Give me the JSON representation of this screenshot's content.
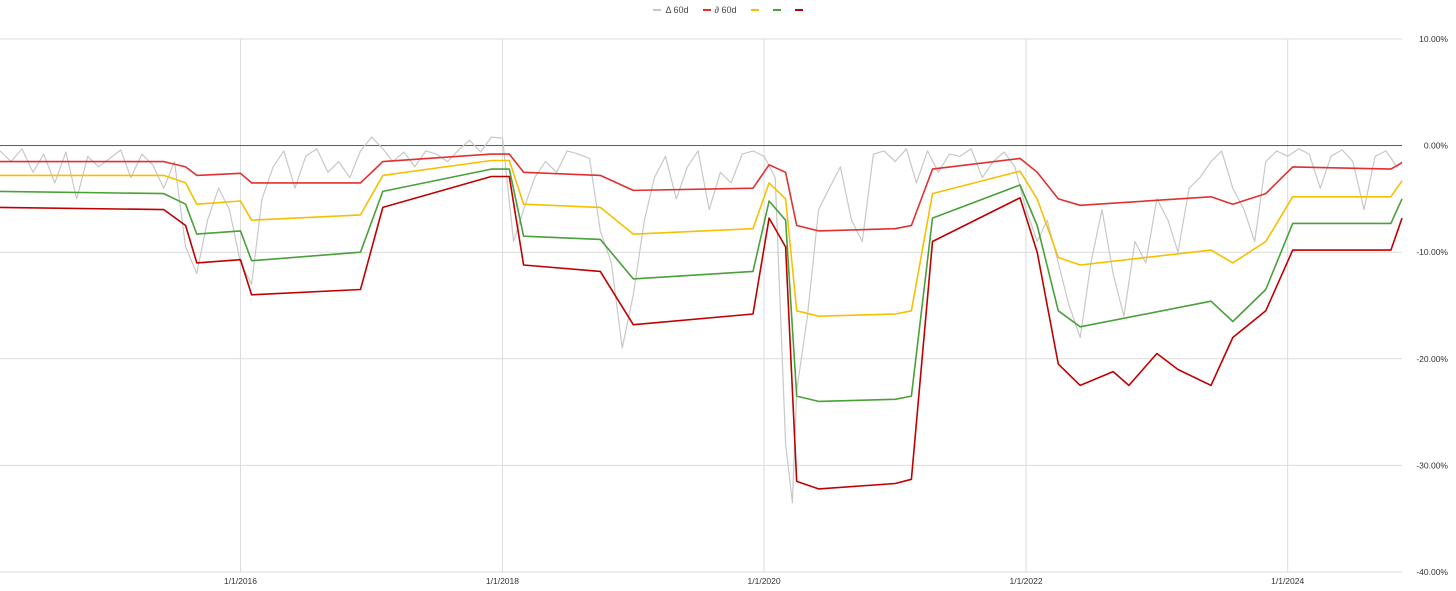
{
  "chart_data": {
    "type": "line",
    "title": "",
    "xlabel": "",
    "ylabel": "",
    "x_ticks": [
      "1/1/2016",
      "1/1/2018",
      "1/1/2020",
      "1/1/2022",
      "1/1/2024"
    ],
    "y_ticks": [
      "10.00%",
      "0.00%",
      "-10.00%",
      "-20.00%",
      "-30.00%",
      "-40.00%"
    ],
    "ylim": [
      -40,
      10
    ],
    "xlim": [
      "2014-03-01",
      "2024-11-15"
    ],
    "grid": true,
    "legend_position": "top-center",
    "zero_line": true,
    "series": [
      {
        "name": "Δ 60d",
        "color": "#c8c8c8",
        "points": [
          [
            "2014-03-01",
            -0.5
          ],
          [
            "2014-04-01",
            -1.5
          ],
          [
            "2014-05-01",
            -0.3
          ],
          [
            "2014-06-01",
            -2.5
          ],
          [
            "2014-07-01",
            -0.8
          ],
          [
            "2014-08-01",
            -3.5
          ],
          [
            "2014-09-01",
            -0.6
          ],
          [
            "2014-10-01",
            -5.0
          ],
          [
            "2014-11-01",
            -1.0
          ],
          [
            "2014-12-01",
            -2.0
          ],
          [
            "2015-01-01",
            -1.2
          ],
          [
            "2015-02-01",
            -0.4
          ],
          [
            "2015-03-01",
            -3.0
          ],
          [
            "2015-04-01",
            -0.8
          ],
          [
            "2015-05-01",
            -1.8
          ],
          [
            "2015-06-01",
            -4.0
          ],
          [
            "2015-07-01",
            -1.5
          ],
          [
            "2015-08-01",
            -9.5
          ],
          [
            "2015-09-01",
            -12.0
          ],
          [
            "2015-10-01",
            -7.0
          ],
          [
            "2015-11-01",
            -4.0
          ],
          [
            "2015-12-01",
            -6.0
          ],
          [
            "2016-01-01",
            -11.0
          ],
          [
            "2016-02-01",
            -13.0
          ],
          [
            "2016-03-01",
            -5.0
          ],
          [
            "2016-04-01",
            -2.0
          ],
          [
            "2016-05-01",
            -0.5
          ],
          [
            "2016-06-01",
            -4.0
          ],
          [
            "2016-07-01",
            -1.0
          ],
          [
            "2016-08-01",
            -0.3
          ],
          [
            "2016-09-01",
            -2.5
          ],
          [
            "2016-10-01",
            -1.5
          ],
          [
            "2016-11-01",
            -3.0
          ],
          [
            "2016-12-01",
            -0.5
          ],
          [
            "2017-01-01",
            0.8
          ],
          [
            "2017-02-01",
            -0.3
          ],
          [
            "2017-03-01",
            -1.5
          ],
          [
            "2017-04-01",
            -0.6
          ],
          [
            "2017-05-01",
            -2.0
          ],
          [
            "2017-06-01",
            -0.5
          ],
          [
            "2017-07-01",
            -0.8
          ],
          [
            "2017-08-01",
            -1.5
          ],
          [
            "2017-09-01",
            -0.4
          ],
          [
            "2017-10-01",
            0.5
          ],
          [
            "2017-11-01",
            -0.6
          ],
          [
            "2017-12-01",
            0.8
          ],
          [
            "2018-01-01",
            0.7
          ],
          [
            "2018-02-01",
            -9.0
          ],
          [
            "2018-03-01",
            -6.0
          ],
          [
            "2018-04-01",
            -3.0
          ],
          [
            "2018-05-01",
            -1.5
          ],
          [
            "2018-06-01",
            -2.5
          ],
          [
            "2018-07-01",
            -0.5
          ],
          [
            "2018-08-01",
            -0.8
          ],
          [
            "2018-09-01",
            -1.2
          ],
          [
            "2018-10-01",
            -8.0
          ],
          [
            "2018-11-01",
            -11.0
          ],
          [
            "2018-12-01",
            -19.0
          ],
          [
            "2019-01-01",
            -14.0
          ],
          [
            "2019-02-01",
            -7.0
          ],
          [
            "2019-03-01",
            -3.0
          ],
          [
            "2019-04-01",
            -1.0
          ],
          [
            "2019-05-01",
            -5.0
          ],
          [
            "2019-06-01",
            -2.0
          ],
          [
            "2019-07-01",
            -0.5
          ],
          [
            "2019-08-01",
            -6.0
          ],
          [
            "2019-09-01",
            -2.5
          ],
          [
            "2019-10-01",
            -3.5
          ],
          [
            "2019-11-01",
            -0.8
          ],
          [
            "2019-12-01",
            -0.5
          ],
          [
            "2020-01-01",
            -1.0
          ],
          [
            "2020-02-01",
            -3.0
          ],
          [
            "2020-03-01",
            -28.0
          ],
          [
            "2020-03-20",
            -33.5
          ],
          [
            "2020-04-01",
            -23.0
          ],
          [
            "2020-05-01",
            -16.0
          ],
          [
            "2020-06-01",
            -6.0
          ],
          [
            "2020-07-01",
            -4.0
          ],
          [
            "2020-08-01",
            -2.0
          ],
          [
            "2020-09-01",
            -7.0
          ],
          [
            "2020-10-01",
            -9.0
          ],
          [
            "2020-11-01",
            -0.8
          ],
          [
            "2020-12-01",
            -0.5
          ],
          [
            "2021-01-01",
            -1.5
          ],
          [
            "2021-02-01",
            -0.3
          ],
          [
            "2021-03-01",
            -3.5
          ],
          [
            "2021-04-01",
            -0.5
          ],
          [
            "2021-05-01",
            -2.5
          ],
          [
            "2021-06-01",
            -0.8
          ],
          [
            "2021-07-01",
            -1.0
          ],
          [
            "2021-08-01",
            -0.3
          ],
          [
            "2021-09-01",
            -3.0
          ],
          [
            "2021-10-01",
            -1.5
          ],
          [
            "2021-11-01",
            -0.6
          ],
          [
            "2021-12-01",
            -2.0
          ],
          [
            "2022-01-01",
            -6.0
          ],
          [
            "2022-02-01",
            -9.0
          ],
          [
            "2022-03-01",
            -7.0
          ],
          [
            "2022-04-01",
            -11.0
          ],
          [
            "2022-05-01",
            -15.0
          ],
          [
            "2022-06-01",
            -18.0
          ],
          [
            "2022-07-01",
            -11.0
          ],
          [
            "2022-08-01",
            -6.0
          ],
          [
            "2022-09-01",
            -12.0
          ],
          [
            "2022-10-01",
            -16.0
          ],
          [
            "2022-11-01",
            -9.0
          ],
          [
            "2022-12-01",
            -11.0
          ],
          [
            "2023-01-01",
            -5.0
          ],
          [
            "2023-02-01",
            -7.0
          ],
          [
            "2023-03-01",
            -10.0
          ],
          [
            "2023-04-01",
            -4.0
          ],
          [
            "2023-05-01",
            -3.0
          ],
          [
            "2023-06-01",
            -1.5
          ],
          [
            "2023-07-01",
            -0.5
          ],
          [
            "2023-08-01",
            -4.0
          ],
          [
            "2023-09-01",
            -6.0
          ],
          [
            "2023-10-01",
            -9.0
          ],
          [
            "2023-11-01",
            -1.5
          ],
          [
            "2023-12-01",
            -0.5
          ],
          [
            "2024-01-01",
            -1.0
          ],
          [
            "2024-02-01",
            -0.3
          ],
          [
            "2024-03-01",
            -0.8
          ],
          [
            "2024-04-01",
            -4.0
          ],
          [
            "2024-05-01",
            -1.0
          ],
          [
            "2024-06-01",
            -0.4
          ],
          [
            "2024-07-01",
            -1.5
          ],
          [
            "2024-08-01",
            -6.0
          ],
          [
            "2024-09-01",
            -1.0
          ],
          [
            "2024-10-01",
            -0.5
          ],
          [
            "2024-11-01",
            -2.0
          ],
          [
            "2024-11-15",
            -1.5
          ]
        ]
      },
      {
        "name": "∂ 60d",
        "color": "#e03030",
        "points": [
          [
            "2014-03-01",
            -1.5
          ],
          [
            "2015-06-01",
            -1.5
          ],
          [
            "2015-08-01",
            -2.0
          ],
          [
            "2015-09-01",
            -2.8
          ],
          [
            "2016-01-01",
            -2.6
          ],
          [
            "2016-02-01",
            -3.5
          ],
          [
            "2016-12-01",
            -3.5
          ],
          [
            "2017-02-01",
            -1.5
          ],
          [
            "2017-12-01",
            -0.8
          ],
          [
            "2018-01-20",
            -0.8
          ],
          [
            "2018-03-01",
            -2.5
          ],
          [
            "2018-10-01",
            -2.8
          ],
          [
            "2019-01-01",
            -4.2
          ],
          [
            "2019-12-01",
            -4.0
          ],
          [
            "2020-01-15",
            -1.8
          ],
          [
            "2020-03-01",
            -2.5
          ],
          [
            "2020-04-01",
            -7.5
          ],
          [
            "2020-06-01",
            -8.0
          ],
          [
            "2021-01-01",
            -7.8
          ],
          [
            "2021-02-15",
            -7.5
          ],
          [
            "2021-04-15",
            -2.2
          ],
          [
            "2021-12-15",
            -1.2
          ],
          [
            "2022-02-01",
            -2.5
          ],
          [
            "2022-04-01",
            -5.0
          ],
          [
            "2022-06-01",
            -5.6
          ],
          [
            "2023-06-01",
            -4.8
          ],
          [
            "2023-08-01",
            -5.5
          ],
          [
            "2023-11-01",
            -4.5
          ],
          [
            "2024-01-15",
            -2.0
          ],
          [
            "2024-10-15",
            -2.2
          ],
          [
            "2024-11-15",
            -1.6
          ]
        ]
      },
      {
        "name": "",
        "color": "#f5c000",
        "points": [
          [
            "2014-03-01",
            -2.8
          ],
          [
            "2015-06-01",
            -2.8
          ],
          [
            "2015-08-01",
            -3.5
          ],
          [
            "2015-09-01",
            -5.5
          ],
          [
            "2016-01-01",
            -5.2
          ],
          [
            "2016-02-01",
            -7.0
          ],
          [
            "2016-12-01",
            -6.5
          ],
          [
            "2017-02-01",
            -2.8
          ],
          [
            "2017-12-01",
            -1.4
          ],
          [
            "2018-01-20",
            -1.4
          ],
          [
            "2018-03-01",
            -5.5
          ],
          [
            "2018-10-01",
            -5.8
          ],
          [
            "2019-01-01",
            -8.3
          ],
          [
            "2019-12-01",
            -7.8
          ],
          [
            "2020-01-15",
            -3.5
          ],
          [
            "2020-03-01",
            -5.0
          ],
          [
            "2020-04-01",
            -15.5
          ],
          [
            "2020-06-01",
            -16.0
          ],
          [
            "2021-01-01",
            -15.8
          ],
          [
            "2021-02-15",
            -15.5
          ],
          [
            "2021-04-15",
            -4.5
          ],
          [
            "2021-12-15",
            -2.4
          ],
          [
            "2022-02-01",
            -5.0
          ],
          [
            "2022-04-01",
            -10.5
          ],
          [
            "2022-06-01",
            -11.2
          ],
          [
            "2023-06-01",
            -9.8
          ],
          [
            "2023-08-01",
            -11.0
          ],
          [
            "2023-11-01",
            -9.0
          ],
          [
            "2024-01-15",
            -4.8
          ],
          [
            "2024-10-15",
            -4.8
          ],
          [
            "2024-11-15",
            -3.3
          ]
        ]
      },
      {
        "name": "",
        "color": "#4aa03a",
        "points": [
          [
            "2014-03-01",
            -4.3
          ],
          [
            "2015-06-01",
            -4.5
          ],
          [
            "2015-08-01",
            -5.5
          ],
          [
            "2015-09-01",
            -8.3
          ],
          [
            "2016-01-01",
            -8.0
          ],
          [
            "2016-02-01",
            -10.8
          ],
          [
            "2016-12-01",
            -10.0
          ],
          [
            "2017-02-01",
            -4.3
          ],
          [
            "2017-12-01",
            -2.2
          ],
          [
            "2018-01-20",
            -2.2
          ],
          [
            "2018-03-01",
            -8.5
          ],
          [
            "2018-10-01",
            -8.8
          ],
          [
            "2019-01-01",
            -12.5
          ],
          [
            "2019-12-01",
            -11.8
          ],
          [
            "2020-01-15",
            -5.2
          ],
          [
            "2020-03-01",
            -7.0
          ],
          [
            "2020-04-01",
            -23.5
          ],
          [
            "2020-06-01",
            -24.0
          ],
          [
            "2021-01-01",
            -23.8
          ],
          [
            "2021-02-15",
            -23.5
          ],
          [
            "2021-04-15",
            -6.8
          ],
          [
            "2021-12-15",
            -3.7
          ],
          [
            "2022-02-01",
            -7.5
          ],
          [
            "2022-04-01",
            -15.5
          ],
          [
            "2022-06-01",
            -17.0
          ],
          [
            "2023-06-01",
            -14.6
          ],
          [
            "2023-08-01",
            -16.5
          ],
          [
            "2023-11-01",
            -13.5
          ],
          [
            "2024-01-15",
            -7.3
          ],
          [
            "2024-10-15",
            -7.3
          ],
          [
            "2024-11-15",
            -5.0
          ]
        ]
      },
      {
        "name": "",
        "color": "#c00000",
        "points": [
          [
            "2014-03-01",
            -5.8
          ],
          [
            "2015-06-01",
            -6.0
          ],
          [
            "2015-08-01",
            -7.5
          ],
          [
            "2015-09-01",
            -11.0
          ],
          [
            "2016-01-01",
            -10.7
          ],
          [
            "2016-02-01",
            -14.0
          ],
          [
            "2016-12-01",
            -13.5
          ],
          [
            "2017-02-01",
            -5.8
          ],
          [
            "2017-12-01",
            -2.9
          ],
          [
            "2018-01-20",
            -2.9
          ],
          [
            "2018-03-01",
            -11.2
          ],
          [
            "2018-10-01",
            -11.8
          ],
          [
            "2019-01-01",
            -16.8
          ],
          [
            "2019-12-01",
            -15.8
          ],
          [
            "2020-01-15",
            -6.8
          ],
          [
            "2020-03-01",
            -9.5
          ],
          [
            "2020-04-01",
            -31.5
          ],
          [
            "2020-06-01",
            -32.2
          ],
          [
            "2021-01-01",
            -31.7
          ],
          [
            "2021-02-15",
            -31.3
          ],
          [
            "2021-04-15",
            -9.0
          ],
          [
            "2021-12-15",
            -4.9
          ],
          [
            "2022-02-01",
            -10.0
          ],
          [
            "2022-04-01",
            -20.5
          ],
          [
            "2022-06-01",
            -22.5
          ],
          [
            "2022-09-01",
            -21.2
          ],
          [
            "2022-10-15",
            -22.5
          ],
          [
            "2023-01-01",
            -19.5
          ],
          [
            "2023-03-01",
            -21.0
          ],
          [
            "2023-06-01",
            -22.5
          ],
          [
            "2023-08-01",
            -18.0
          ],
          [
            "2023-11-01",
            -15.5
          ],
          [
            "2024-01-15",
            -9.8
          ],
          [
            "2024-10-15",
            -9.8
          ],
          [
            "2024-11-15",
            -6.8
          ]
        ]
      }
    ]
  }
}
